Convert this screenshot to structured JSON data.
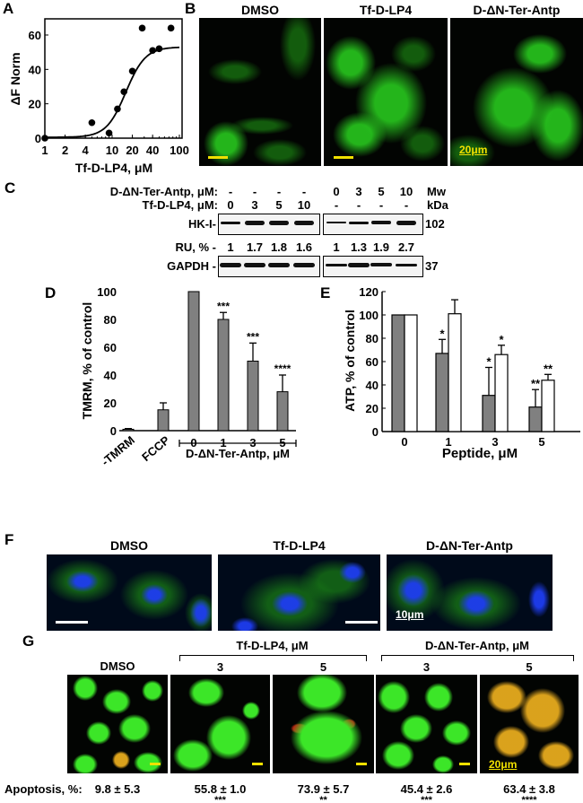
{
  "panels": {
    "A": "A",
    "B": "B",
    "C": "C",
    "D": "D",
    "E": "E",
    "F": "F",
    "G": "G"
  },
  "chart_data": [
    {
      "id": "A",
      "type": "scatter",
      "xscale": "log",
      "xlabel": "Tf-D-LP4, μM",
      "ylabel": "ΔF Norm",
      "xlim": [
        1,
        100
      ],
      "ylim": [
        0,
        70
      ],
      "xticks": [
        1,
        2,
        4,
        10,
        20,
        40,
        100
      ],
      "yticks": [
        0,
        20,
        40,
        60
      ],
      "points": [
        [
          1,
          0
        ],
        [
          5,
          9
        ],
        [
          9,
          3
        ],
        [
          12,
          17
        ],
        [
          15,
          27
        ],
        [
          20,
          39
        ],
        [
          28,
          64
        ],
        [
          40,
          51
        ],
        [
          50,
          52
        ],
        [
          75,
          64
        ]
      ],
      "fit": {
        "bottom": 0.5,
        "top": 53,
        "ec50": 16,
        "hill": 3
      },
      "grid": false
    },
    {
      "id": "D",
      "type": "bar",
      "ylabel": "TMRM, % of control",
      "ylim": [
        0,
        100
      ],
      "yticks": [
        0,
        20,
        40,
        60,
        80,
        100
      ],
      "categories": [
        "-TMRM",
        "FCCP",
        "0",
        "1",
        "3",
        "5"
      ],
      "values": [
        1,
        15,
        100,
        80,
        50,
        28
      ],
      "errors": [
        0.5,
        5,
        0,
        5,
        13,
        12
      ],
      "annotations": [
        "",
        "",
        "",
        "***",
        "***",
        "****"
      ],
      "group_label": "D-ΔN-Ter-Antp, μM",
      "bar_color": "#808080",
      "grid": false
    },
    {
      "id": "E",
      "type": "bar",
      "xlabel": "Peptide, μM",
      "ylabel": "ATP, % of control",
      "ylim": [
        0,
        120
      ],
      "yticks": [
        0,
        20,
        40,
        60,
        80,
        100,
        120
      ],
      "categories": [
        "0",
        "1",
        "3",
        "5"
      ],
      "series": [
        {
          "values": [
            100,
            67,
            31,
            21
          ],
          "errors": [
            0,
            12,
            24,
            15
          ],
          "annotations": [
            "",
            "*",
            "*",
            "**"
          ],
          "color": "#808080"
        },
        {
          "values": [
            100,
            101,
            66,
            44
          ],
          "errors": [
            0,
            12,
            8,
            5
          ],
          "annotations": [
            "",
            "",
            "*",
            "**"
          ],
          "color": "#ffffff"
        }
      ],
      "grid": false
    }
  ],
  "panelB": {
    "titles": [
      "DMSO",
      "Tf-D-LP4",
      "D-ΔN-Ter-Antp"
    ],
    "scale": "20μm"
  },
  "panelC": {
    "row1_label": "D-ΔN-Ter-Antp, μM:",
    "row1": [
      "-",
      "-",
      "-",
      "-",
      "0",
      "3",
      "5",
      "10"
    ],
    "row2_label": "Tf-D-LP4, μM:",
    "row2": [
      "0",
      "3",
      "5",
      "10",
      "-",
      "-",
      "-",
      "-"
    ],
    "mw": "Mw",
    "kda": "kDa",
    "hk_label": "HK-I-",
    "hk_mw": "102",
    "ru_label": "RU, % -",
    "ru": [
      "1",
      "1.7",
      "1.8",
      "1.6",
      "1",
      "1.3",
      "1.9",
      "2.7"
    ],
    "gapdh_label": "GAPDH -",
    "gapdh_mw": "37"
  },
  "panelF": {
    "titles": [
      "DMSO",
      "Tf-D-LP4",
      "D-ΔN-Ter-Antp"
    ],
    "scale": "10μm"
  },
  "panelG": {
    "dmso": "DMSO",
    "group1": "Tf-D-LP4, μM",
    "group2": "D-ΔN-Ter-Antp, μM",
    "doses": [
      "3",
      "5",
      "3",
      "5"
    ],
    "scale": "20μm",
    "apoptosis_label": "Apoptosis, %:",
    "values": [
      "9.8 ± 5.3",
      "55.8 ± 1.0",
      "73.9 ± 5.7",
      "45.4 ± 2.6",
      "63.4 ± 3.8"
    ],
    "stars": [
      "",
      "***",
      "**",
      "***",
      "****"
    ]
  },
  "colors": {
    "mito": "#22c81e",
    "nucleus": "#1f3cf0",
    "scalebar": "#f0e000",
    "apoptotic": "#e0a020"
  }
}
